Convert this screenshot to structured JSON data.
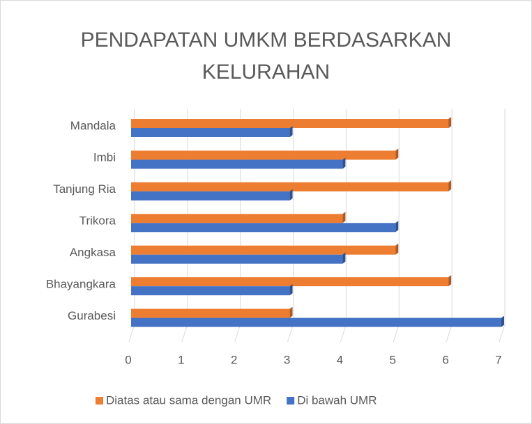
{
  "chart_data": {
    "type": "hbar",
    "title": "PENDAPATAN UMKM BERDASARKAN KELURAHAN",
    "categories": [
      "Mandala",
      "Imbi",
      "Tanjung Ria",
      "Trikora",
      "Angkasa",
      "Bhayangkara",
      "Gurabesi"
    ],
    "series": [
      {
        "name": "Diatas atau sama dengan UMR",
        "color": "#ed7d31",
        "values": [
          6,
          5,
          6,
          4,
          5,
          6,
          3
        ]
      },
      {
        "name": "Di bawah UMR",
        "color": "#4472c4",
        "values": [
          3,
          4,
          3,
          5,
          4,
          3,
          7
        ]
      }
    ],
    "xlim": [
      0,
      7
    ],
    "xticks": [
      0,
      1,
      2,
      3,
      4,
      5,
      6,
      7
    ],
    "grid": true,
    "legend": "bottom"
  }
}
